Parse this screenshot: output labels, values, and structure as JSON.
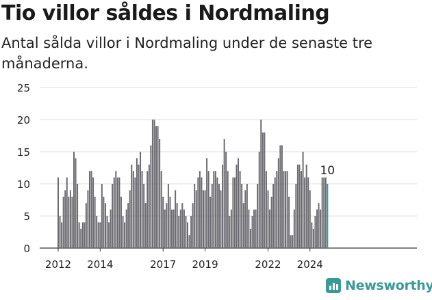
{
  "title": "Tio villor såldes i Nordmaling",
  "subtitle": "Antal sålda villor i Nordmaling under de senaste tre månaderna.",
  "brand": "Newsworthy",
  "colors": {
    "bar": "#6b6b70",
    "highlight": "#2a9d95",
    "brand": "#3a9a97",
    "grid": "#dddddd"
  },
  "chart_data": {
    "type": "bar",
    "title": "Tio villor såldes i Nordmaling",
    "subtitle": "Antal sålda villor i Nordmaling under de senaste tre månaderna.",
    "xlabel": "",
    "ylabel": "",
    "ylim": [
      0,
      25
    ],
    "yticks": [
      0,
      5,
      10,
      15,
      20,
      25
    ],
    "xticks": [
      "2012",
      "2014",
      "2017",
      "2019",
      "2022",
      "2024"
    ],
    "grid": true,
    "legend": "none",
    "period": "monthly, Jan 2012 – Oct 2024",
    "values": [
      11,
      5,
      4,
      8,
      9,
      11,
      8,
      9,
      8,
      15,
      14,
      10,
      4,
      3,
      4,
      4,
      7,
      9,
      12,
      12,
      11,
      8,
      5,
      4,
      4,
      10,
      8,
      7,
      5,
      4,
      6,
      10,
      11,
      12,
      11,
      11,
      8,
      5,
      4,
      6,
      7,
      9,
      13,
      12,
      11,
      14,
      13,
      15,
      12,
      10,
      7,
      12,
      13,
      16,
      20,
      20,
      19,
      19,
      17,
      12,
      8,
      6,
      7,
      10,
      8,
      6,
      6,
      9,
      7,
      5,
      6,
      7,
      6,
      5,
      4,
      2,
      5,
      7,
      10,
      9,
      11,
      12,
      11,
      9,
      9,
      14,
      12,
      8,
      10,
      12,
      12,
      11,
      10,
      9,
      13,
      17,
      15,
      12,
      5,
      6,
      11,
      11,
      13,
      14,
      12,
      10,
      7,
      9,
      10,
      6,
      3,
      5,
      6,
      6,
      10,
      15,
      20,
      18,
      18,
      12,
      9,
      6,
      8,
      10,
      11,
      12,
      14,
      16,
      16,
      12,
      12,
      12,
      8,
      2,
      2,
      6,
      10,
      13,
      13,
      12,
      15,
      11,
      13,
      11,
      9,
      4,
      3,
      5,
      6,
      7,
      6,
      11,
      11,
      11,
      10
    ],
    "highlight": {
      "label": "10",
      "value": 10
    }
  }
}
